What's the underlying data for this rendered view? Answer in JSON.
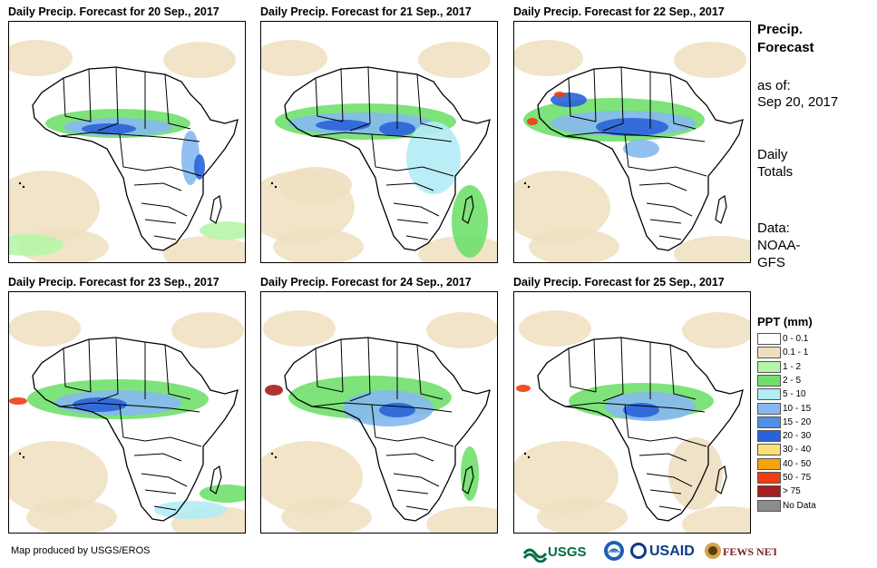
{
  "panels": [
    {
      "title": "Daily Precip. Forecast for 20 Sep., 2017"
    },
    {
      "title": "Daily Precip. Forecast for 21 Sep., 2017"
    },
    {
      "title": "Daily Precip. Forecast for 22 Sep., 2017"
    },
    {
      "title": "Daily Precip. Forecast for 23 Sep., 2017"
    },
    {
      "title": "Daily Precip. Forecast for 24 Sep., 2017"
    },
    {
      "title": "Daily Precip. Forecast for 25 Sep., 2017"
    }
  ],
  "side_info": {
    "heading_line1": "Precip.",
    "heading_line2": "Forecast",
    "asof_line1": "as of:",
    "asof_line2": "Sep 20, 2017",
    "totals_line1": "Daily",
    "totals_line2": "Totals",
    "data_line1": "Data:",
    "data_line2": "NOAA-",
    "data_line3": "GFS"
  },
  "legend": {
    "title": "PPT (mm)",
    "items": [
      {
        "label": "0 - 0.1",
        "color": "#ffffff"
      },
      {
        "label": "0.1 - 1",
        "color": "#eedfc0"
      },
      {
        "label": "1 - 2",
        "color": "#b6f5a8"
      },
      {
        "label": "2 - 5",
        "color": "#6fe06b"
      },
      {
        "label": "5 - 10",
        "color": "#b2ecf5"
      },
      {
        "label": "10 - 15",
        "color": "#86b8f0"
      },
      {
        "label": "15 - 20",
        "color": "#5090e6"
      },
      {
        "label": "20 - 30",
        "color": "#2a63d8"
      },
      {
        "label": "30 - 40",
        "color": "#fbe079"
      },
      {
        "label": "40 - 50",
        "color": "#f5a20b"
      },
      {
        "label": "50 - 75",
        "color": "#f03c0f"
      },
      {
        "label": "> 75",
        "color": "#a51d1d"
      },
      {
        "label": "No Data",
        "color": "#8c8c8c"
      }
    ]
  },
  "footer": {
    "credit": "Map produced by USGS/EROS",
    "logos": [
      {
        "name": "USGS",
        "text": "USGS"
      },
      {
        "name": "NOAA",
        "text": "NOAA"
      },
      {
        "name": "USAID",
        "text": "USAID"
      },
      {
        "name": "FEWS NET",
        "text": "FEWS NET"
      }
    ]
  }
}
